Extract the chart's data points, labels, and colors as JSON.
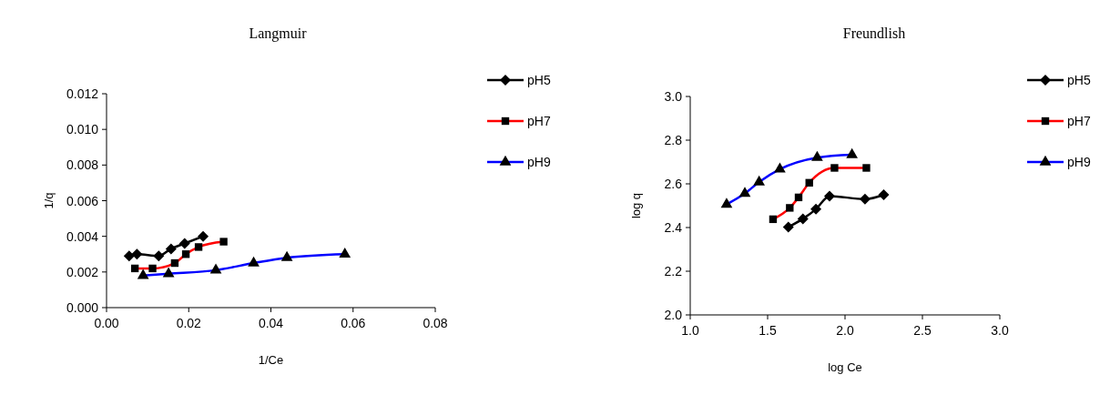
{
  "chart_data": [
    {
      "type": "line",
      "title": "Langmuir",
      "xlabel": "1/Ce",
      "ylabel": "1/q",
      "xlim": [
        0,
        0.08
      ],
      "xticks": [
        {
          "value": 0,
          "label": "0.00"
        },
        {
          "value": 0.02,
          "label": "0.02"
        },
        {
          "value": 0.04,
          "label": "0.04"
        },
        {
          "value": 0.06,
          "label": "0.06"
        },
        {
          "value": 0.08,
          "label": "0.08"
        }
      ],
      "ylim": [
        0,
        0.012
      ],
      "yticks": [
        {
          "value": 0,
          "label": "0.000"
        },
        {
          "value": 0.002,
          "label": "0.002"
        },
        {
          "value": 0.004,
          "label": "0.004"
        },
        {
          "value": 0.006,
          "label": "0.006"
        },
        {
          "value": 0.008,
          "label": "0.008"
        },
        {
          "value": 0.01,
          "label": "0.010"
        },
        {
          "value": 0.012,
          "label": "0.012"
        }
      ],
      "grid": false,
      "legend": "right",
      "series": [
        {
          "name": "pH5",
          "color": "#000000",
          "marker": "diamond",
          "x": [
            0.0055,
            0.0074,
            0.0127,
            0.0157,
            0.019,
            0.0235
          ],
          "values": [
            0.0029,
            0.003,
            0.0029,
            0.0033,
            0.0036,
            0.004
          ]
        },
        {
          "name": "pH7",
          "color": "#ff0000",
          "marker": "square",
          "x": [
            0.0069,
            0.0112,
            0.0166,
            0.0193,
            0.0224,
            0.0285
          ],
          "values": [
            0.0022,
            0.0022,
            0.0025,
            0.003,
            0.0034,
            0.0037
          ]
        },
        {
          "name": "pH9",
          "color": "#0000ff",
          "marker": "triangle",
          "x": [
            0.0089,
            0.0151,
            0.0266,
            0.0358,
            0.0439,
            0.058
          ],
          "values": [
            0.0018,
            0.0019,
            0.0021,
            0.0025,
            0.0028,
            0.003
          ]
        }
      ]
    },
    {
      "type": "line",
      "title": "Freundlish",
      "xlabel": "log Ce",
      "ylabel": "log q",
      "xlim": [
        1,
        3
      ],
      "xticks": [
        {
          "value": 1,
          "label": "1.0"
        },
        {
          "value": 1.5,
          "label": "1.5"
        },
        {
          "value": 2,
          "label": "2.0"
        },
        {
          "value": 2.5,
          "label": "2.5"
        },
        {
          "value": 3,
          "label": "3.0"
        }
      ],
      "ylim": [
        2,
        3
      ],
      "yticks": [
        {
          "value": 2,
          "label": "2.0"
        },
        2.2,
        2.4,
        2.6,
        2.8,
        {
          "value": 3,
          "label": "3.0"
        }
      ],
      "grid": false,
      "legend": "right",
      "series": [
        {
          "name": "pH5",
          "color": "#000000",
          "marker": "diamond",
          "x": [
            1.634,
            1.728,
            1.812,
            1.9,
            2.129,
            2.25
          ],
          "values": [
            2.402,
            2.44,
            2.484,
            2.544,
            2.53,
            2.55
          ]
        },
        {
          "name": "pH7",
          "color": "#ff0000",
          "marker": "square",
          "x": [
            1.535,
            1.643,
            1.7,
            1.769,
            1.932,
            2.138
          ],
          "values": [
            2.438,
            2.49,
            2.538,
            2.605,
            2.673,
            2.673
          ]
        },
        {
          "name": "pH9",
          "color": "#0000ff",
          "marker": "triangle",
          "x": [
            1.235,
            1.353,
            1.445,
            1.579,
            1.82,
            2.045
          ],
          "values": [
            2.506,
            2.556,
            2.608,
            2.667,
            2.72,
            2.733
          ]
        }
      ]
    }
  ]
}
